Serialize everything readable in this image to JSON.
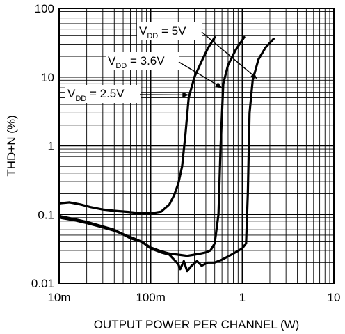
{
  "chart_data": {
    "type": "line",
    "xlabel": "OUTPUT POWER PER CHANNEL (W)",
    "ylabel": "THD+N (%)",
    "x_scale": "log",
    "y_scale": "log",
    "xlim": [
      0.01,
      10
    ],
    "ylim": [
      0.01,
      100
    ],
    "grid": true,
    "x_tick_labels": [
      {
        "value": 0.01,
        "label": "10m"
      },
      {
        "value": 0.1,
        "label": "100m"
      },
      {
        "value": 1,
        "label": "1"
      },
      {
        "value": 10,
        "label": "10"
      }
    ],
    "y_tick_labels": [
      {
        "value": 0.01,
        "label": "0.01"
      },
      {
        "value": 0.1,
        "label": "0.1"
      },
      {
        "value": 1,
        "label": "1"
      },
      {
        "value": 10,
        "label": "10"
      },
      {
        "value": 100,
        "label": "100"
      }
    ],
    "series": [
      {
        "name": "VDD = 2.5V",
        "label_main": "V",
        "label_sub": "DD",
        "label_rest": " = 2.5V",
        "color": "#000000",
        "points": [
          [
            0.01,
            0.145
          ],
          [
            0.013,
            0.15
          ],
          [
            0.017,
            0.14
          ],
          [
            0.022,
            0.128
          ],
          [
            0.03,
            0.118
          ],
          [
            0.04,
            0.113
          ],
          [
            0.06,
            0.108
          ],
          [
            0.08,
            0.104
          ],
          [
            0.1,
            0.104
          ],
          [
            0.13,
            0.11
          ],
          [
            0.16,
            0.14
          ],
          [
            0.18,
            0.19
          ],
          [
            0.2,
            0.28
          ],
          [
            0.22,
            0.5
          ],
          [
            0.24,
            1.5
          ],
          [
            0.26,
            5.0
          ],
          [
            0.3,
            10.0
          ],
          [
            0.36,
            17.0
          ],
          [
            0.42,
            26.0
          ],
          [
            0.5,
            38.0
          ]
        ]
      },
      {
        "name": "VDD = 3.6V",
        "label_main": "V",
        "label_sub": "DD",
        "label_rest": " = 3.6V",
        "color": "#000000",
        "points": [
          [
            0.01,
            0.09
          ],
          [
            0.015,
            0.082
          ],
          [
            0.02,
            0.075
          ],
          [
            0.03,
            0.065
          ],
          [
            0.04,
            0.058
          ],
          [
            0.06,
            0.047
          ],
          [
            0.08,
            0.04
          ],
          [
            0.1,
            0.033
          ],
          [
            0.13,
            0.029
          ],
          [
            0.16,
            0.027
          ],
          [
            0.2,
            0.026
          ],
          [
            0.25,
            0.025
          ],
          [
            0.3,
            0.026
          ],
          [
            0.35,
            0.027
          ],
          [
            0.4,
            0.028
          ],
          [
            0.45,
            0.03
          ],
          [
            0.5,
            0.038
          ],
          [
            0.55,
            0.1
          ],
          [
            0.58,
            1.0
          ],
          [
            0.62,
            8.0
          ],
          [
            0.7,
            15.0
          ],
          [
            0.85,
            25.0
          ],
          [
            1.05,
            38.0
          ]
        ]
      },
      {
        "name": "VDD = 5V",
        "label_main": "V",
        "label_sub": "DD",
        "label_rest": " = 5V",
        "color": "#000000",
        "points": [
          [
            0.01,
            0.095
          ],
          [
            0.015,
            0.085
          ],
          [
            0.02,
            0.078
          ],
          [
            0.03,
            0.067
          ],
          [
            0.04,
            0.06
          ],
          [
            0.06,
            0.045
          ],
          [
            0.08,
            0.04
          ],
          [
            0.1,
            0.032
          ],
          [
            0.13,
            0.028
          ],
          [
            0.16,
            0.026
          ],
          [
            0.18,
            0.022
          ],
          [
            0.2,
            0.019
          ],
          [
            0.21,
            0.016
          ],
          [
            0.23,
            0.021
          ],
          [
            0.25,
            0.015
          ],
          [
            0.28,
            0.018
          ],
          [
            0.32,
            0.021
          ],
          [
            0.36,
            0.018
          ],
          [
            0.42,
            0.02
          ],
          [
            0.5,
            0.02
          ],
          [
            0.6,
            0.022
          ],
          [
            0.8,
            0.027
          ],
          [
            1.0,
            0.032
          ],
          [
            1.1,
            0.038
          ],
          [
            1.15,
            0.2
          ],
          [
            1.2,
            3.0
          ],
          [
            1.3,
            9.0
          ],
          [
            1.5,
            18.0
          ],
          [
            1.8,
            27.0
          ],
          [
            2.2,
            36.0
          ]
        ]
      }
    ]
  }
}
